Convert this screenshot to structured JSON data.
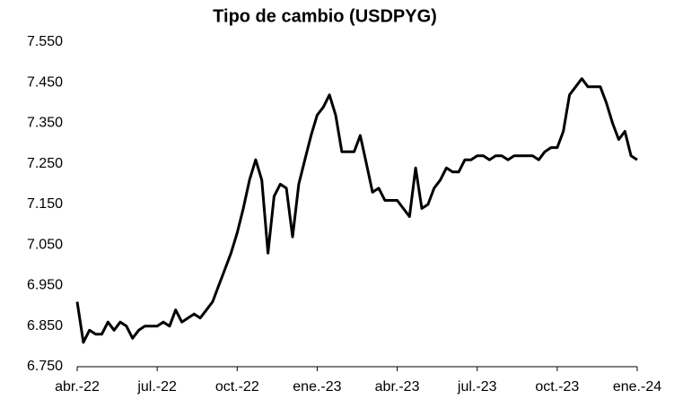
{
  "chart_data": {
    "type": "line",
    "title": "Tipo de cambio (USDPYG)",
    "categories": [
      "abr.-22",
      null,
      null,
      null,
      null,
      null,
      null,
      null,
      null,
      null,
      null,
      null,
      null,
      "jul.-22",
      null,
      null,
      null,
      null,
      null,
      null,
      null,
      null,
      null,
      null,
      null,
      null,
      "oct.-22",
      null,
      null,
      null,
      null,
      null,
      null,
      null,
      null,
      null,
      null,
      null,
      null,
      "ene.-23",
      null,
      null,
      null,
      null,
      null,
      null,
      null,
      null,
      null,
      null,
      null,
      null,
      "abr.-23",
      null,
      null,
      null,
      null,
      null,
      null,
      null,
      null,
      null,
      null,
      null,
      null,
      "jul.-23",
      null,
      null,
      null,
      null,
      null,
      null,
      null,
      null,
      null,
      null,
      null,
      null,
      "oct.-23",
      null,
      null,
      null,
      null,
      null,
      null,
      null,
      null,
      null,
      null,
      null,
      null,
      "ene.-24"
    ],
    "series": [
      {
        "name": "USDPYG",
        "color": "#000000",
        "values": [
          6.91,
          6.81,
          6.84,
          6.83,
          6.83,
          6.86,
          6.84,
          6.86,
          6.85,
          6.82,
          6.84,
          6.85,
          6.85,
          6.85,
          6.86,
          6.85,
          6.89,
          6.86,
          6.87,
          6.88,
          6.87,
          6.89,
          6.91,
          6.95,
          6.99,
          7.03,
          7.08,
          7.14,
          7.21,
          7.26,
          7.21,
          7.03,
          7.17,
          7.2,
          7.19,
          7.07,
          7.2,
          7.26,
          7.32,
          7.37,
          7.39,
          7.42,
          7.37,
          7.28,
          7.28,
          7.28,
          7.32,
          7.25,
          7.18,
          7.19,
          7.16,
          7.16,
          7.16,
          7.14,
          7.12,
          7.24,
          7.14,
          7.15,
          7.19,
          7.21,
          7.24,
          7.23,
          7.23,
          7.26,
          7.26,
          7.27,
          7.27,
          7.26,
          7.27,
          7.27,
          7.26,
          7.27,
          7.27,
          7.27,
          7.27,
          7.26,
          7.28,
          7.29,
          7.29,
          7.33,
          7.42,
          7.44,
          7.46,
          7.44,
          7.44,
          7.44,
          7.4,
          7.35,
          7.31,
          7.33,
          7.27,
          7.26
        ]
      }
    ],
    "ylim": [
      6.75,
      7.55
    ],
    "yticks": [
      {
        "value": 6.75,
        "label": "6.750"
      },
      {
        "value": 6.85,
        "label": "6.850"
      },
      {
        "value": 6.95,
        "label": "6.950"
      },
      {
        "value": 7.05,
        "label": "7.050"
      },
      {
        "value": 7.15,
        "label": "7.150"
      },
      {
        "value": 7.25,
        "label": "7.250"
      },
      {
        "value": 7.35,
        "label": "7.350"
      },
      {
        "value": 7.45,
        "label": "7.450"
      },
      {
        "value": 7.55,
        "label": "7.550"
      }
    ],
    "grid": false
  }
}
